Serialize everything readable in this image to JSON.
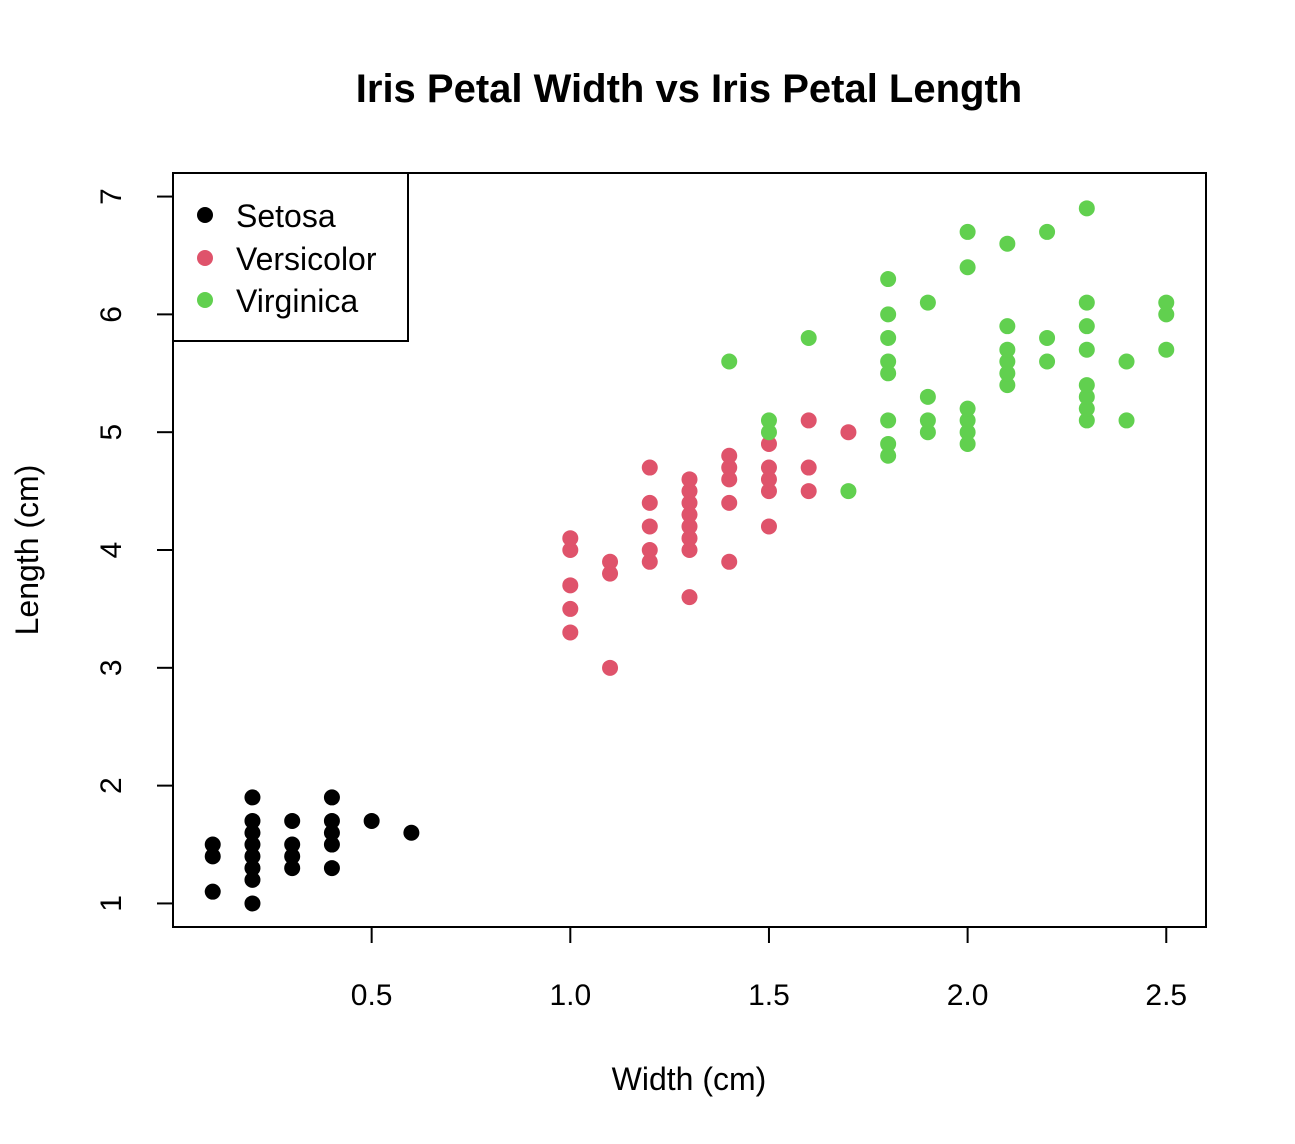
{
  "chart_data": {
    "type": "scatter",
    "title": "Iris Petal Width vs Iris Petal Length",
    "xlabel": "Width (cm)",
    "ylabel": "Length (cm)",
    "xlim": [
      0.0,
      2.6
    ],
    "ylim": [
      0.8,
      7.2
    ],
    "xticks": [
      0.5,
      1.0,
      1.5,
      2.0,
      2.5
    ],
    "xtick_labels": [
      "0.5",
      "1.0",
      "1.5",
      "2.0",
      "2.5"
    ],
    "yticks": [
      1,
      2,
      3,
      4,
      5,
      6,
      7
    ],
    "ytick_labels": [
      "1",
      "2",
      "3",
      "4",
      "5",
      "6",
      "7"
    ],
    "grid": false,
    "legend_position": "top-left",
    "series": [
      {
        "name": "Setosa",
        "color": "#000000",
        "points": [
          [
            0.1,
            1.1
          ],
          [
            0.1,
            1.4
          ],
          [
            0.1,
            1.5
          ],
          [
            0.2,
            1.0
          ],
          [
            0.2,
            1.2
          ],
          [
            0.2,
            1.3
          ],
          [
            0.2,
            1.4
          ],
          [
            0.2,
            1.5
          ],
          [
            0.2,
            1.6
          ],
          [
            0.2,
            1.7
          ],
          [
            0.2,
            1.9
          ],
          [
            0.3,
            1.3
          ],
          [
            0.3,
            1.4
          ],
          [
            0.3,
            1.5
          ],
          [
            0.3,
            1.7
          ],
          [
            0.4,
            1.3
          ],
          [
            0.4,
            1.5
          ],
          [
            0.4,
            1.6
          ],
          [
            0.4,
            1.7
          ],
          [
            0.4,
            1.9
          ],
          [
            0.5,
            1.7
          ],
          [
            0.6,
            1.6
          ]
        ]
      },
      {
        "name": "Versicolor",
        "color": "#DF536B",
        "points": [
          [
            1.0,
            3.3
          ],
          [
            1.0,
            3.5
          ],
          [
            1.0,
            3.7
          ],
          [
            1.0,
            4.0
          ],
          [
            1.0,
            4.1
          ],
          [
            1.1,
            3.0
          ],
          [
            1.1,
            3.8
          ],
          [
            1.1,
            3.9
          ],
          [
            1.2,
            3.9
          ],
          [
            1.2,
            4.0
          ],
          [
            1.2,
            4.2
          ],
          [
            1.2,
            4.4
          ],
          [
            1.2,
            4.7
          ],
          [
            1.3,
            3.6
          ],
          [
            1.3,
            4.0
          ],
          [
            1.3,
            4.1
          ],
          [
            1.3,
            4.2
          ],
          [
            1.3,
            4.3
          ],
          [
            1.3,
            4.4
          ],
          [
            1.3,
            4.5
          ],
          [
            1.3,
            4.6
          ],
          [
            1.4,
            3.9
          ],
          [
            1.4,
            4.4
          ],
          [
            1.4,
            4.6
          ],
          [
            1.4,
            4.7
          ],
          [
            1.4,
            4.8
          ],
          [
            1.5,
            4.2
          ],
          [
            1.5,
            4.5
          ],
          [
            1.5,
            4.6
          ],
          [
            1.5,
            4.7
          ],
          [
            1.5,
            4.9
          ],
          [
            1.6,
            4.5
          ],
          [
            1.6,
            4.7
          ],
          [
            1.6,
            5.1
          ],
          [
            1.7,
            5.0
          ]
        ]
      },
      {
        "name": "Virginica",
        "color": "#61D04F",
        "points": [
          [
            1.4,
            5.6
          ],
          [
            1.5,
            5.0
          ],
          [
            1.5,
            5.1
          ],
          [
            1.6,
            5.8
          ],
          [
            1.7,
            4.5
          ],
          [
            1.8,
            4.8
          ],
          [
            1.8,
            4.9
          ],
          [
            1.8,
            5.1
          ],
          [
            1.8,
            5.5
          ],
          [
            1.8,
            5.6
          ],
          [
            1.8,
            5.8
          ],
          [
            1.8,
            6.0
          ],
          [
            1.8,
            6.3
          ],
          [
            1.9,
            5.0
          ],
          [
            1.9,
            5.1
          ],
          [
            1.9,
            5.3
          ],
          [
            1.9,
            6.1
          ],
          [
            2.0,
            4.9
          ],
          [
            2.0,
            5.0
          ],
          [
            2.0,
            5.1
          ],
          [
            2.0,
            5.2
          ],
          [
            2.0,
            6.4
          ],
          [
            2.0,
            6.7
          ],
          [
            2.1,
            5.4
          ],
          [
            2.1,
            5.5
          ],
          [
            2.1,
            5.6
          ],
          [
            2.1,
            5.7
          ],
          [
            2.1,
            5.9
          ],
          [
            2.1,
            6.6
          ],
          [
            2.2,
            5.6
          ],
          [
            2.2,
            5.8
          ],
          [
            2.2,
            6.7
          ],
          [
            2.3,
            5.1
          ],
          [
            2.3,
            5.2
          ],
          [
            2.3,
            5.3
          ],
          [
            2.3,
            5.4
          ],
          [
            2.3,
            5.7
          ],
          [
            2.3,
            5.9
          ],
          [
            2.3,
            6.1
          ],
          [
            2.3,
            6.9
          ],
          [
            2.4,
            5.1
          ],
          [
            2.4,
            5.6
          ],
          [
            2.5,
            5.7
          ],
          [
            2.5,
            6.0
          ],
          [
            2.5,
            6.1
          ]
        ]
      }
    ]
  }
}
